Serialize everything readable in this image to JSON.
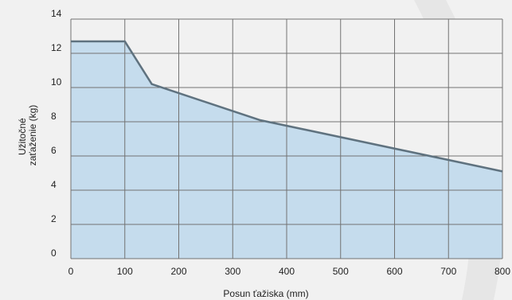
{
  "chart_data": {
    "type": "area",
    "title": "",
    "xlabel": "Posun ťažiska (mm)",
    "ylabel_lines": [
      "Užitočné",
      "zaťaženie (kg)"
    ],
    "xlim": [
      0,
      800
    ],
    "ylim": [
      0,
      14
    ],
    "x_ticks": [
      0,
      100,
      200,
      300,
      400,
      500,
      600,
      700,
      800
    ],
    "y_ticks": [
      0,
      2,
      4,
      6,
      8,
      10,
      12,
      14
    ],
    "grid": true,
    "legend": "none",
    "series": [
      {
        "x": [
          0,
          100,
          150,
          350,
          800
        ],
        "y": [
          12.7,
          12.7,
          10.2,
          8.1,
          5.1
        ]
      }
    ],
    "colors": {
      "fill": "#c5dced",
      "line": "#5f727f",
      "grid": "#727272",
      "background": "#f1f1f1",
      "watermark": "#e6e6e6"
    }
  }
}
